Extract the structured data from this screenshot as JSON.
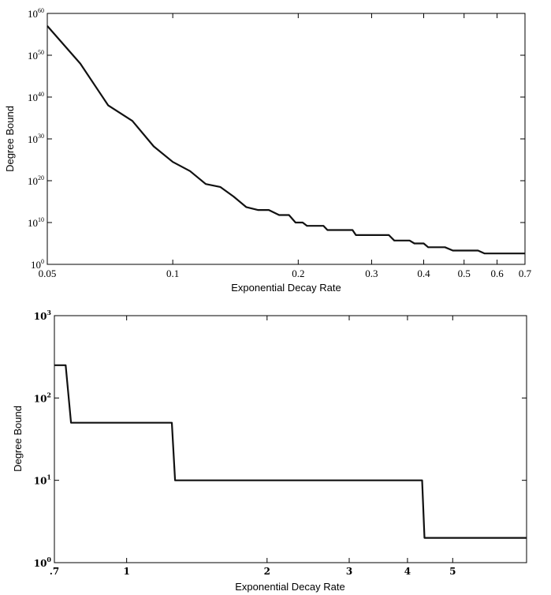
{
  "chart_data": [
    {
      "type": "line",
      "xlabel": "Exponential Decay Rate",
      "ylabel": "Degree Bound",
      "xscale": "log",
      "yscale": "log",
      "xlim": [
        0.05,
        0.7
      ],
      "ylim_exponent": [
        0,
        60
      ],
      "grid": false,
      "xticks": [
        {
          "value": 0.05,
          "label": "0.05"
        },
        {
          "value": 0.1,
          "label": "0.1"
        },
        {
          "value": 0.2,
          "label": "0.2"
        },
        {
          "value": 0.3,
          "label": "0.3"
        },
        {
          "value": 0.4,
          "label": "0.4"
        },
        {
          "value": 0.5,
          "label": "0.5"
        },
        {
          "value": 0.6,
          "label": "0.6"
        },
        {
          "value": 0.7,
          "label": "0.7"
        }
      ],
      "yticks": [
        {
          "exponent": 0,
          "base": "10",
          "sup": "0"
        },
        {
          "exponent": 10,
          "base": "10",
          "sup": "10"
        },
        {
          "exponent": 20,
          "base": "10",
          "sup": "20"
        },
        {
          "exponent": 30,
          "base": "10",
          "sup": "30"
        },
        {
          "exponent": 40,
          "base": "10",
          "sup": "40"
        },
        {
          "exponent": 50,
          "base": "10",
          "sup": "50"
        },
        {
          "exponent": 60,
          "base": "10",
          "sup": "60"
        }
      ],
      "series": [
        {
          "x_log10_y_exponent": "points are [x, log10(degree bound)]",
          "points": [
            [
              0.05,
              57.0
            ],
            [
              0.06,
              48.0
            ],
            [
              0.07,
              38.0
            ],
            [
              0.08,
              34.3
            ],
            [
              0.09,
              28.2
            ],
            [
              0.1,
              24.5
            ],
            [
              0.11,
              22.3
            ],
            [
              0.12,
              19.2
            ],
            [
              0.13,
              18.5
            ],
            [
              0.14,
              16.2
            ],
            [
              0.15,
              13.7
            ],
            [
              0.16,
              13.0
            ],
            [
              0.17,
              13.0
            ],
            [
              0.18,
              11.8
            ],
            [
              0.19,
              11.8
            ],
            [
              0.197,
              10.0
            ],
            [
              0.205,
              10.0
            ],
            [
              0.21,
              9.2
            ],
            [
              0.23,
              9.2
            ],
            [
              0.235,
              8.2
            ],
            [
              0.27,
              8.2
            ],
            [
              0.275,
              7.0
            ],
            [
              0.33,
              7.0
            ],
            [
              0.34,
              5.7
            ],
            [
              0.37,
              5.7
            ],
            [
              0.38,
              5.0
            ],
            [
              0.4,
              5.0
            ],
            [
              0.41,
              4.1
            ],
            [
              0.45,
              4.1
            ],
            [
              0.47,
              3.3
            ],
            [
              0.54,
              3.3
            ],
            [
              0.56,
              2.6
            ],
            [
              0.7,
              2.6
            ]
          ]
        }
      ]
    },
    {
      "type": "line",
      "xlabel": "Exponential Decay Rate",
      "ylabel": "Degree Bound",
      "xscale": "log",
      "yscale": "log",
      "xlim": [
        0.7,
        7.2
      ],
      "ylim_exponent": [
        0,
        3
      ],
      "grid": false,
      "xticks": [
        {
          "value": 0.7,
          "label": ".7"
        },
        {
          "value": 1,
          "label": "1"
        },
        {
          "value": 2,
          "label": "2"
        },
        {
          "value": 3,
          "label": "3"
        },
        {
          "value": 4,
          "label": "4"
        },
        {
          "value": 5,
          "label": "5"
        }
      ],
      "yticks": [
        {
          "exponent": 0,
          "base": "10",
          "sup": "0"
        },
        {
          "exponent": 1,
          "base": "10",
          "sup": "1"
        },
        {
          "exponent": 2,
          "base": "10",
          "sup": "2"
        },
        {
          "exponent": 3,
          "base": "10",
          "sup": "3"
        }
      ],
      "series": [
        {
          "points": [
            [
              0.7,
              250
            ],
            [
              0.74,
              250
            ],
            [
              0.76,
              50
            ],
            [
              1.25,
              50
            ],
            [
              1.27,
              10
            ],
            [
              4.3,
              10
            ],
            [
              4.35,
              2
            ],
            [
              7.2,
              2
            ]
          ]
        }
      ]
    }
  ]
}
